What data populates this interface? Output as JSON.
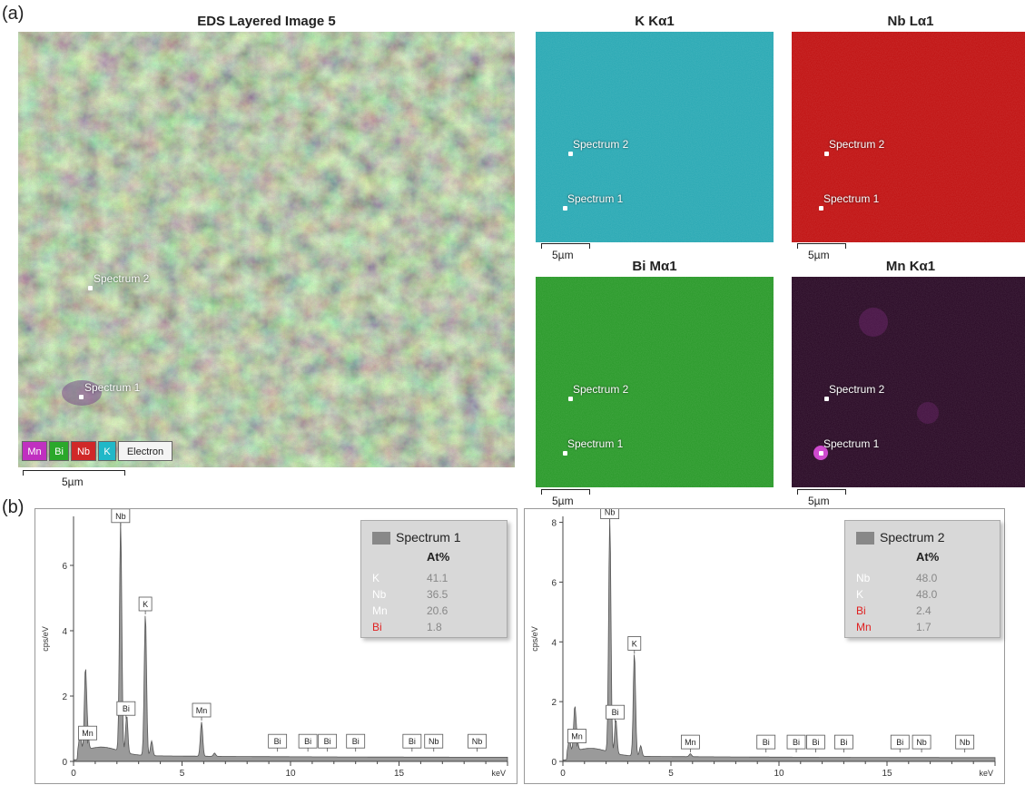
{
  "labels": {
    "a": "(a)",
    "b": "(b)"
  },
  "layered": {
    "title": "EDS Layered Image 5",
    "spectra": [
      "Spectrum 2",
      "Spectrum 1"
    ],
    "legend": [
      {
        "label": "Mn",
        "color": "#e040e0"
      },
      {
        "label": "Bi",
        "color": "#30c030"
      },
      {
        "label": "Nb",
        "color": "#e03030"
      },
      {
        "label": "K",
        "color": "#20d0d0"
      },
      {
        "label": "Electron",
        "color": "#ffffff"
      }
    ],
    "scale": "5µm"
  },
  "maps": [
    {
      "title": "K Kα1",
      "color": "#2aa9b4",
      "s2": "Spectrum 2",
      "s1": "Spectrum 1",
      "scale": "5µm"
    },
    {
      "title": "Nb Lα1",
      "color": "#c11212",
      "s2": "Spectrum 2",
      "s1": "Spectrum 1",
      "scale": "5µm"
    },
    {
      "title": "Bi Mα1",
      "color": "#2a9a2a",
      "s2": "Spectrum 2",
      "s1": "Spectrum 1",
      "scale": "5µm"
    },
    {
      "title": "Mn Kα1",
      "color": "#2a0a26",
      "s2": "Spectrum 2",
      "s1": "Spectrum 1",
      "scale": "5µm"
    }
  ],
  "chart_data": [
    {
      "type": "area",
      "title": "Spectrum 1",
      "xlabel": "keV",
      "ylabel": "cps/eV",
      "xlim": [
        0,
        20
      ],
      "ylim": [
        0,
        7.5
      ],
      "xticks": [
        "0",
        "5",
        "10",
        "15"
      ],
      "yticks": [
        "0",
        "2",
        "4",
        "6"
      ],
      "peaks": [
        {
          "x": 0.3,
          "y": 0.7
        },
        {
          "x": 0.55,
          "y": 2.6
        },
        {
          "x": 0.65,
          "y": 0.6
        },
        {
          "x": 2.17,
          "y": 7.2
        },
        {
          "x": 2.45,
          "y": 1.3
        },
        {
          "x": 3.31,
          "y": 4.5
        },
        {
          "x": 3.6,
          "y": 0.6
        },
        {
          "x": 5.9,
          "y": 1.2
        },
        {
          "x": 6.5,
          "y": 0.25
        }
      ],
      "markers": [
        {
          "label": "Mn",
          "x": 0.65,
          "y": 0.55
        },
        {
          "label": "Nb",
          "x": 2.17,
          "y": 7.2
        },
        {
          "label": "Bi",
          "x": 2.42,
          "y": 1.3
        },
        {
          "label": "K",
          "x": 3.31,
          "y": 4.5
        },
        {
          "label": "Mn",
          "x": 5.9,
          "y": 1.25
        },
        {
          "label": "Bi",
          "x": 9.4,
          "y": 0.3
        },
        {
          "label": "Bi",
          "x": 10.8,
          "y": 0.3
        },
        {
          "label": "Bi",
          "x": 11.7,
          "y": 0.3
        },
        {
          "label": "Bi",
          "x": 13.0,
          "y": 0.3
        },
        {
          "label": "Bi",
          "x": 15.6,
          "y": 0.3
        },
        {
          "label": "Nb",
          "x": 16.6,
          "y": 0.3
        },
        {
          "label": "Nb",
          "x": 18.6,
          "y": 0.3
        }
      ],
      "table_header": "At%",
      "table": [
        {
          "el": "K",
          "val": "41.1",
          "color": "#ffffff"
        },
        {
          "el": "Nb",
          "val": "36.5",
          "color": "#ffffff"
        },
        {
          "el": "Mn",
          "val": "20.6",
          "color": "#ffffff"
        },
        {
          "el": "Bi",
          "val": "1.8",
          "color": "#e02020"
        }
      ]
    },
    {
      "type": "area",
      "title": "Spectrum 2",
      "xlabel": "keV",
      "ylabel": "cps/eV",
      "xlim": [
        0,
        20
      ],
      "ylim": [
        0,
        8.2
      ],
      "xticks": [
        "0",
        "5",
        "10",
        "15"
      ],
      "yticks": [
        "0",
        "2",
        "4",
        "6",
        "8"
      ],
      "peaks": [
        {
          "x": 0.3,
          "y": 0.6
        },
        {
          "x": 0.55,
          "y": 1.6
        },
        {
          "x": 0.65,
          "y": 0.5
        },
        {
          "x": 2.17,
          "y": 8.0
        },
        {
          "x": 2.45,
          "y": 1.3
        },
        {
          "x": 3.31,
          "y": 3.6
        },
        {
          "x": 3.6,
          "y": 0.5
        },
        {
          "x": 5.9,
          "y": 0.25
        }
      ],
      "markers": [
        {
          "label": "Mn",
          "x": 0.65,
          "y": 0.5
        },
        {
          "label": "Nb",
          "x": 2.17,
          "y": 8.0
        },
        {
          "label": "Bi",
          "x": 2.42,
          "y": 1.3
        },
        {
          "label": "K",
          "x": 3.31,
          "y": 3.6
        },
        {
          "label": "Mn",
          "x": 5.9,
          "y": 0.3
        },
        {
          "label": "Bi",
          "x": 9.4,
          "y": 0.3
        },
        {
          "label": "Bi",
          "x": 10.8,
          "y": 0.3
        },
        {
          "label": "Bi",
          "x": 11.7,
          "y": 0.3
        },
        {
          "label": "Bi",
          "x": 13.0,
          "y": 0.3
        },
        {
          "label": "Bi",
          "x": 15.6,
          "y": 0.3
        },
        {
          "label": "Nb",
          "x": 16.6,
          "y": 0.3
        },
        {
          "label": "Nb",
          "x": 18.6,
          "y": 0.3
        }
      ],
      "table_header": "At%",
      "table": [
        {
          "el": "Nb",
          "val": "48.0",
          "color": "#ffffff"
        },
        {
          "el": "K",
          "val": "48.0",
          "color": "#ffffff"
        },
        {
          "el": "Bi",
          "val": "2.4",
          "color": "#e02020"
        },
        {
          "el": "Mn",
          "val": "1.7",
          "color": "#e02020"
        }
      ]
    }
  ]
}
